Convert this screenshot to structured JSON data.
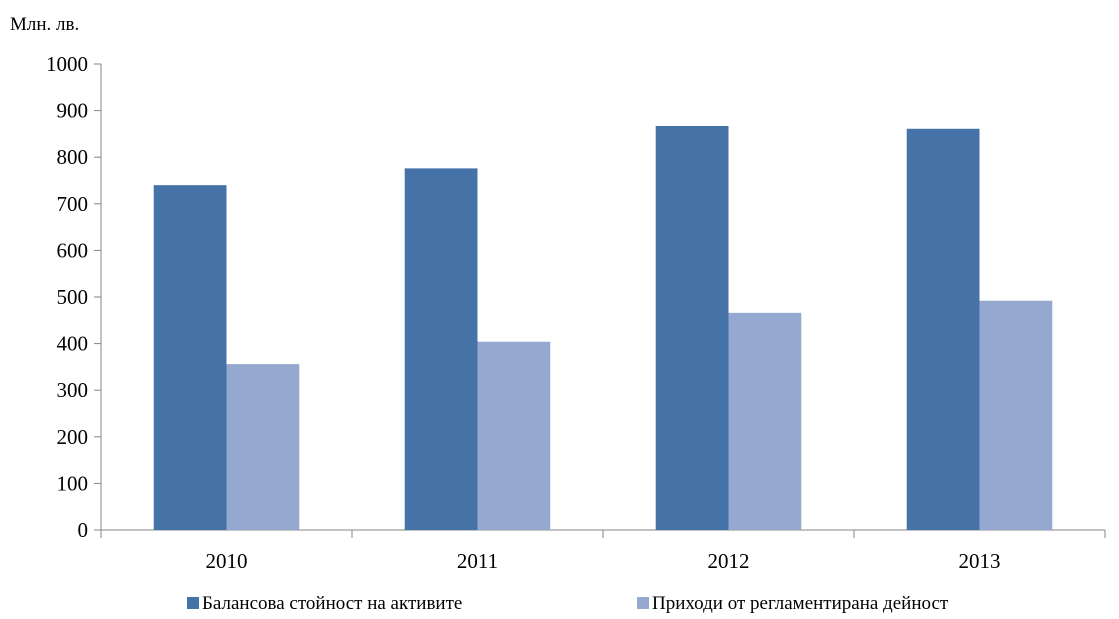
{
  "chart_data": {
    "type": "bar",
    "ylabel": "Млн. лв.",
    "categories": [
      "2010",
      "2011",
      "2012",
      "2013"
    ],
    "series": [
      {
        "name": "Балансова стойност на активите",
        "values": [
          740,
          776,
          867,
          861
        ],
        "color": "#4572A7"
      },
      {
        "name": "Приходи от регламентирана дейност",
        "values": [
          356,
          404,
          466,
          492
        ],
        "color": "#95A9D0"
      }
    ],
    "ylim": [
      0,
      1000
    ],
    "yticks": [
      0,
      100,
      200,
      300,
      400,
      500,
      600,
      700,
      800,
      900,
      1000
    ],
    "grid": false,
    "legend_position": "bottom"
  }
}
